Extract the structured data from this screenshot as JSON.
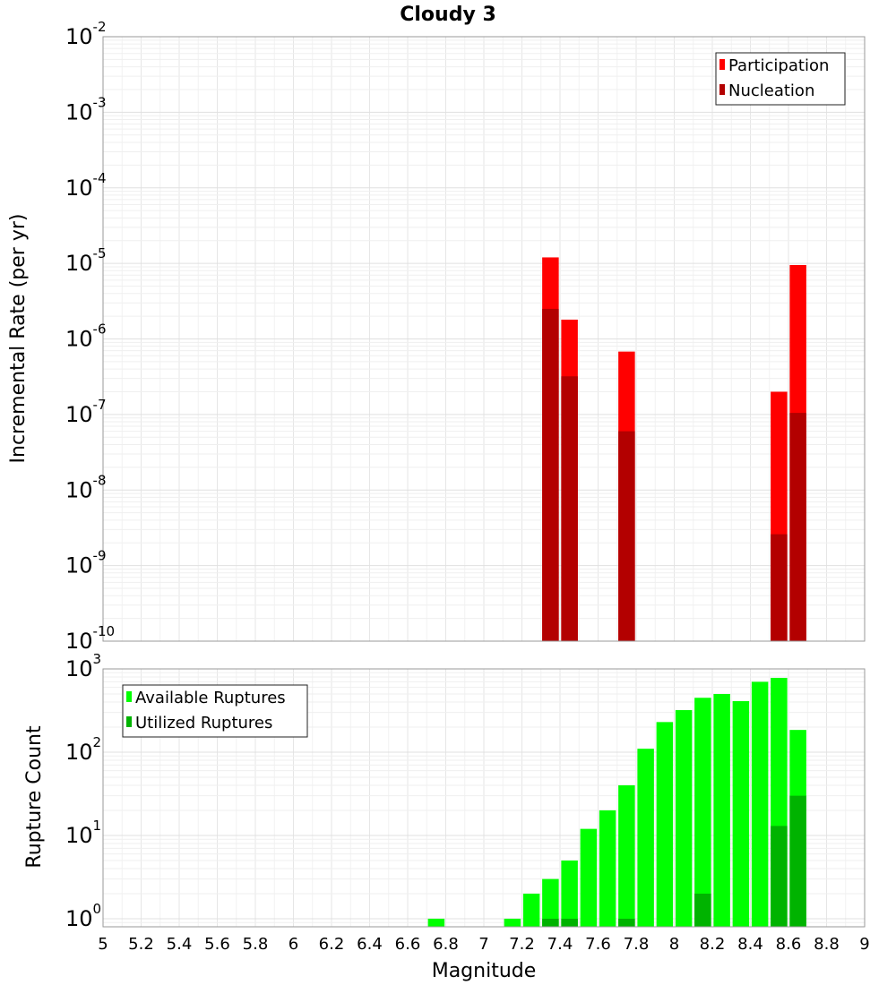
{
  "title": "Cloudy 3",
  "chart_data": [
    {
      "type": "bar",
      "ylabel": "Incremental Rate (per yr)",
      "yscale": "log",
      "ylim": [
        1e-10,
        0.01
      ],
      "y_tick_exponents": [
        -10,
        -9,
        -8,
        -7,
        -6,
        -5,
        -4,
        -3,
        -2
      ],
      "xlim": [
        5,
        9
      ],
      "grid": true,
      "legend_position": "top-right",
      "colors": {
        "Participation": "#ff0000",
        "Nucleation": "#b30000"
      },
      "series": [
        {
          "name": "Participation",
          "x": [
            7.35,
            7.45,
            7.75,
            8.55,
            8.65
          ],
          "values": [
            1.2e-05,
            1.8e-06,
            6.8e-07,
            2e-07,
            9.5e-06
          ]
        },
        {
          "name": "Nucleation",
          "x": [
            7.35,
            7.45,
            7.75,
            8.55,
            8.65
          ],
          "values": [
            2.5e-06,
            3.2e-07,
            6e-08,
            2.6e-09,
            1.05e-07
          ]
        }
      ]
    },
    {
      "type": "bar",
      "xlabel": "Magnitude",
      "ylabel": "Rupture Count",
      "yscale": "log",
      "ylim": [
        0.8,
        1000
      ],
      "y_tick_exponents": [
        0,
        1,
        2,
        3
      ],
      "xlim": [
        5,
        9
      ],
      "x_ticks": [
        "5",
        "5.2",
        "5.4",
        "5.6",
        "5.8",
        "6",
        "6.2",
        "6.4",
        "6.6",
        "6.8",
        "7",
        "7.2",
        "7.4",
        "7.6",
        "7.8",
        "8",
        "8.2",
        "8.4",
        "8.6",
        "8.8",
        "9"
      ],
      "grid": true,
      "legend_position": "top-left",
      "colors": {
        "Available Ruptures": "#00ff00",
        "Utilized Ruptures": "#00b300"
      },
      "series": [
        {
          "name": "Available Ruptures",
          "x": [
            6.75,
            7.15,
            7.25,
            7.35,
            7.45,
            7.55,
            7.65,
            7.75,
            7.85,
            7.95,
            8.05,
            8.15,
            8.25,
            8.35,
            8.45,
            8.55,
            8.65
          ],
          "values": [
            1,
            1,
            2,
            3,
            5,
            12,
            20,
            40,
            110,
            230,
            320,
            450,
            500,
            410,
            700,
            780,
            185
          ]
        },
        {
          "name": "Utilized Ruptures",
          "x": [
            7.35,
            7.45,
            7.75,
            8.15,
            8.55,
            8.65
          ],
          "values": [
            1,
            1,
            1,
            2,
            13,
            30
          ]
        }
      ]
    }
  ]
}
